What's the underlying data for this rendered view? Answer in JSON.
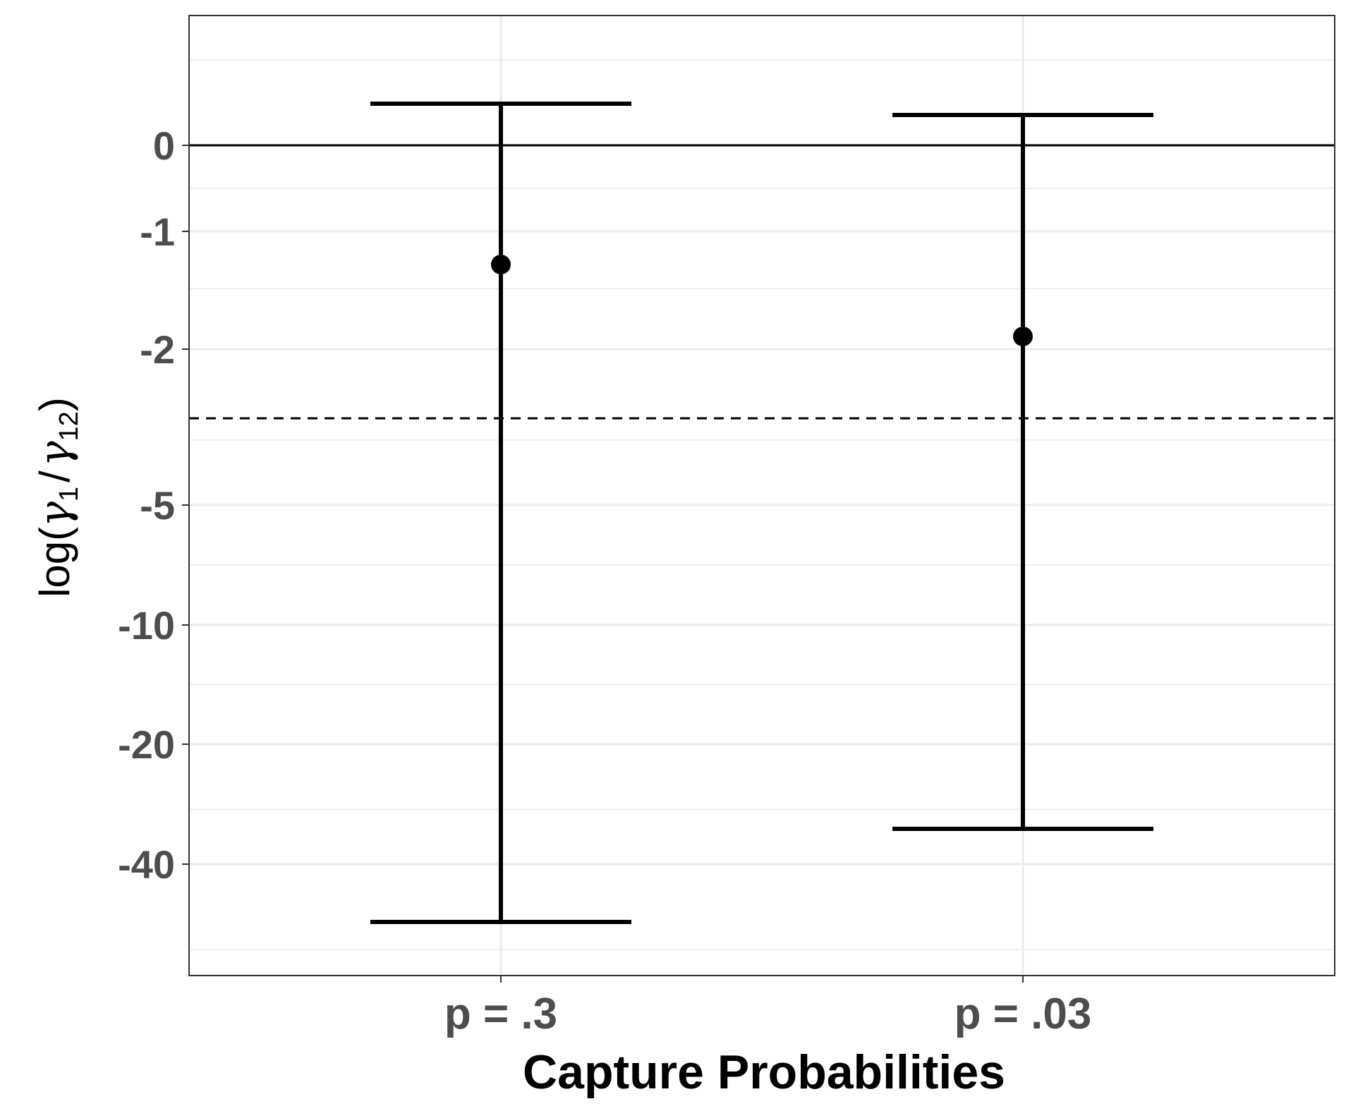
{
  "chart_data": {
    "type": "errorbar",
    "categories": [
      "p = .3",
      "p = .03"
    ],
    "series": [
      {
        "points": [
          {
            "category": "p = .3",
            "estimate": -1.3,
            "lower": -50,
            "upper": 0.35
          },
          {
            "category": "p = .03",
            "estimate": -1.9,
            "lower": -33,
            "upper": 0.25
          }
        ]
      }
    ],
    "xlabel": "Capture Probabilities",
    "ylabel": {
      "prefix": "log(",
      "numerator": "γ",
      "numerator_sub": "1",
      "slash": "/",
      "denominator": "γ",
      "denominator_sub": "12",
      "suffix": ")"
    },
    "y_ticks": [
      {
        "label": "0",
        "value": 0
      },
      {
        "label": "-1",
        "value": -1
      },
      {
        "label": "-2",
        "value": -2
      },
      {
        "label": "-5",
        "value": -5
      },
      {
        "label": "-10",
        "value": -10
      },
      {
        "label": "-20",
        "value": -20
      },
      {
        "label": "-40",
        "value": -40
      }
    ],
    "reference_lines": [
      {
        "value": 0,
        "style": "solid"
      },
      {
        "value": -3,
        "style": "dashed"
      }
    ],
    "grid": true,
    "theme": "bw",
    "colors": {
      "mark": "#000000",
      "grid": "#ebebeb",
      "tick_text": "#4d4d4d",
      "panel_border": "#333333"
    }
  }
}
